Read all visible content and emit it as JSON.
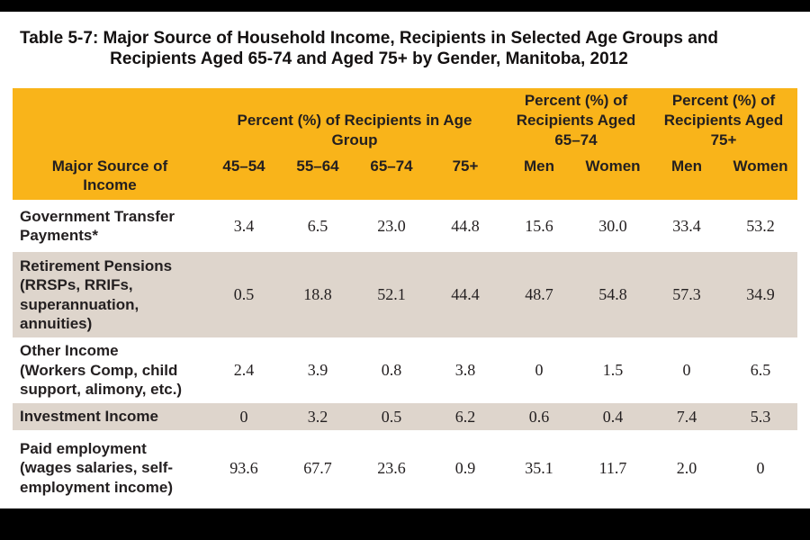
{
  "title": {
    "line1": "Table 5-7: Major Source of Household Income, Recipients in Selected Age Groups and",
    "line2": "Recipients Aged 65-74 and Aged 75+ by Gender, Manitoba, 2012"
  },
  "colors": {
    "header_orange": "#F9B41A",
    "row_shaded": "#DED5CC",
    "row_plain": "#FFFFFF",
    "text": "#231F20",
    "letterbox": "#000000"
  },
  "table": {
    "group_headers": [
      {
        "label": "Percent (%) of Recipients in Age\nGroup",
        "span": 4
      },
      {
        "label": "Percent (%) of\nRecipients Aged\n65–74",
        "span": 2
      },
      {
        "label": "Percent (%) of\nRecipients Aged\n75+",
        "span": 2
      }
    ],
    "column_headers": {
      "label_col": "Major Source of\nIncome",
      "cols": [
        "45–54",
        "55–64",
        "65–74",
        "75+",
        "Men",
        "Women",
        "Men",
        "Women"
      ]
    },
    "rows": [
      {
        "label": "Government Transfer\nPayments*",
        "shaded": false,
        "values": [
          "3.4",
          "6.5",
          "23.0",
          "44.8",
          "15.6",
          "30.0",
          "33.4",
          "53.2"
        ]
      },
      {
        "label": "Retirement Pensions\n(RRSPs, RRIFs,\nsuperannuation,\nannuities)",
        "shaded": true,
        "values": [
          "0.5",
          "18.8",
          "52.1",
          "44.4",
          "48.7",
          "54.8",
          "57.3",
          "34.9"
        ]
      },
      {
        "label": "Other Income\n(Workers Comp, child\nsupport, alimony, etc.)",
        "shaded": false,
        "values": [
          "2.4",
          "3.9",
          "0.8",
          "3.8",
          "0",
          "1.5",
          "0",
          "6.5"
        ]
      },
      {
        "label": "Investment Income",
        "shaded": true,
        "values": [
          "0",
          "3.2",
          "0.5",
          "6.2",
          "0.6",
          "0.4",
          "7.4",
          "5.3"
        ]
      },
      {
        "label": "Paid employment\n(wages salaries, self-\nemployment income)",
        "shaded": false,
        "values": [
          "93.6",
          "67.7",
          "23.6",
          "0.9",
          "35.1",
          "11.7",
          "2.0",
          "0"
        ]
      }
    ]
  },
  "chart_data": {
    "type": "table",
    "title": "Table 5-7: Major Source of Household Income, Recipients in Selected Age Groups and Recipients Aged 65-74 and Aged 75+ by Gender, Manitoba, 2012",
    "column_groups": [
      {
        "label": "Percent (%) of Recipients in Age Group",
        "columns": [
          "45–54",
          "55–64",
          "65–74",
          "75+"
        ]
      },
      {
        "label": "Percent (%) of Recipients Aged 65–74",
        "columns": [
          "Men",
          "Women"
        ]
      },
      {
        "label": "Percent (%) of Recipients Aged 75+",
        "columns": [
          "Men",
          "Women"
        ]
      }
    ],
    "row_header": "Major Source of Income",
    "rows": [
      {
        "source": "Government Transfer Payments*",
        "values": [
          3.4,
          6.5,
          23.0,
          44.8,
          15.6,
          30.0,
          33.4,
          53.2
        ]
      },
      {
        "source": "Retirement Pensions (RRSPs, RRIFs, superannuation, annuities)",
        "values": [
          0.5,
          18.8,
          52.1,
          44.4,
          48.7,
          54.8,
          57.3,
          34.9
        ]
      },
      {
        "source": "Other Income (Workers Comp, child support, alimony, etc.)",
        "values": [
          2.4,
          3.9,
          0.8,
          3.8,
          0,
          1.5,
          0,
          6.5
        ]
      },
      {
        "source": "Investment Income",
        "values": [
          0,
          3.2,
          0.5,
          6.2,
          0.6,
          0.4,
          7.4,
          5.3
        ]
      },
      {
        "source": "Paid employment (wages salaries, self-employment income)",
        "values": [
          93.6,
          67.7,
          23.6,
          0.9,
          35.1,
          11.7,
          2.0,
          0
        ]
      }
    ],
    "units": "percent"
  }
}
